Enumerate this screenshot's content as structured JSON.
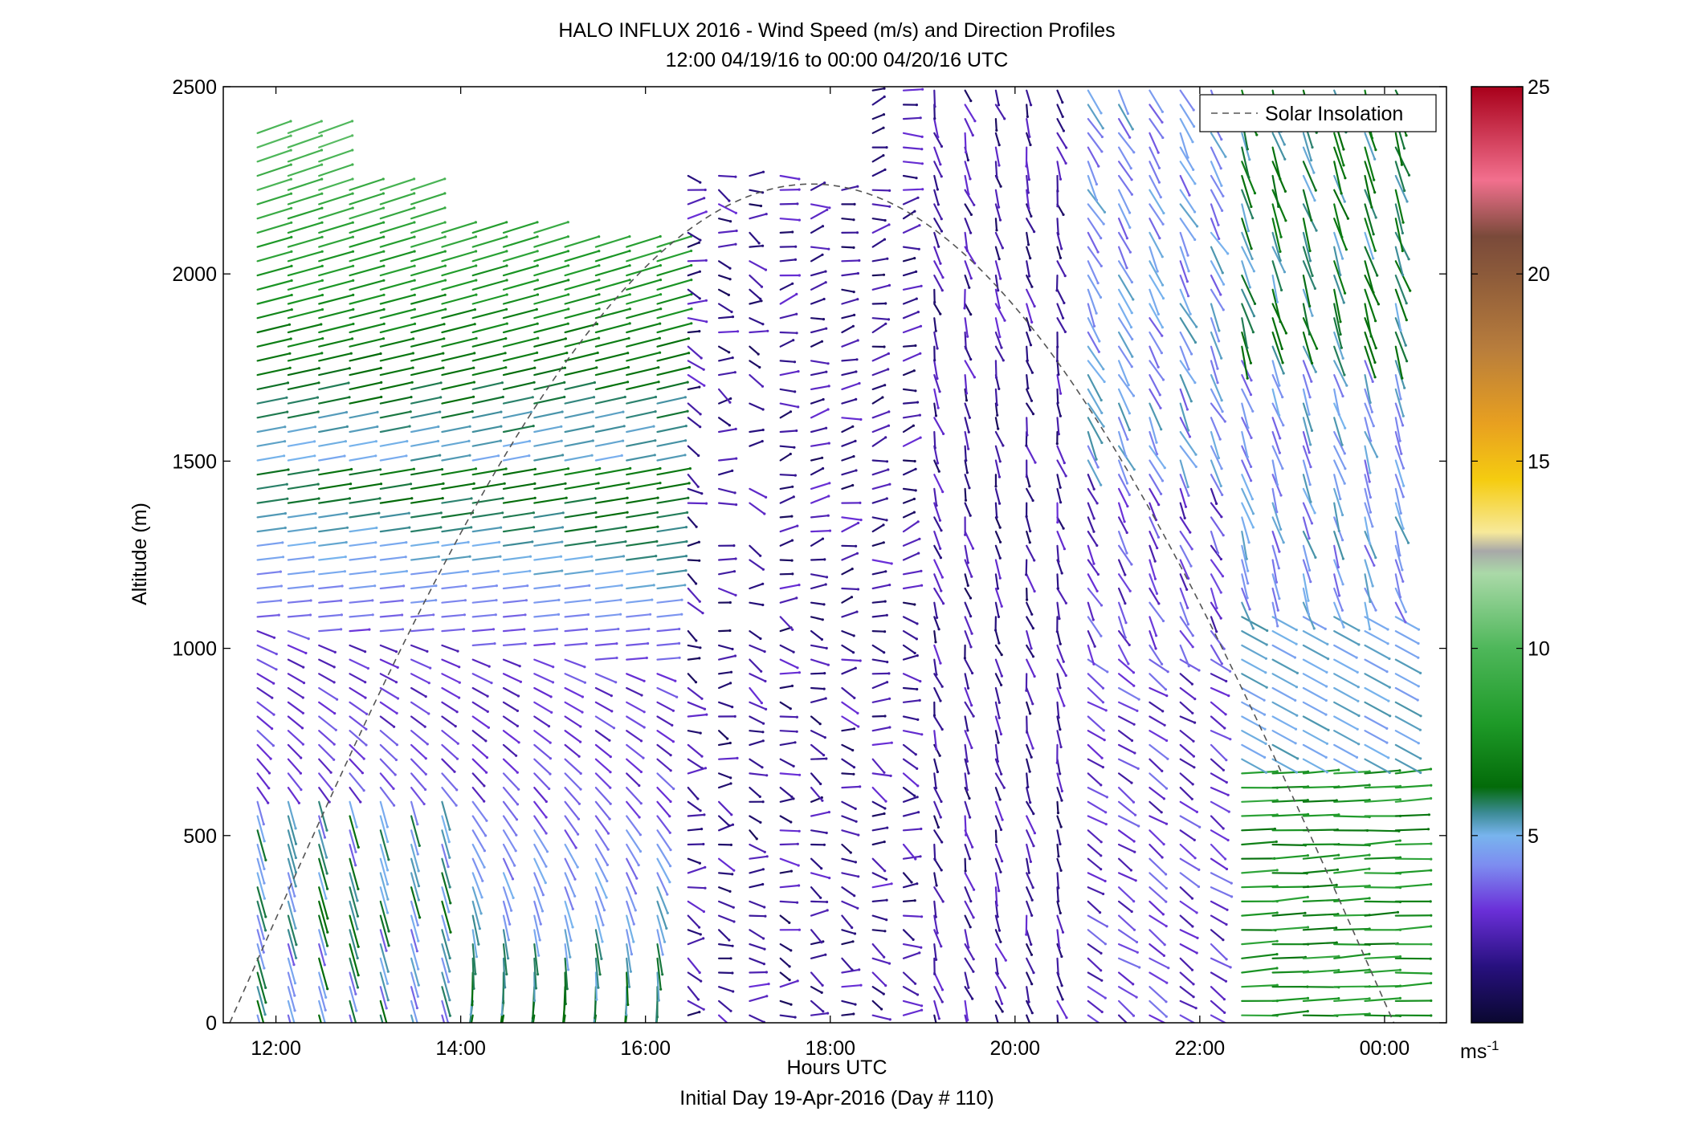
{
  "chart_data": {
    "type": "quiver",
    "title": "HALO INFLUX 2016 - Wind Speed (m/s) and Direction Profiles",
    "subtitle": "12:00 04/19/16 to 00:00 04/20/16  UTC",
    "xlabel": "Hours UTC",
    "xlabel2": "Initial Day 19-Apr-2016 (Day # 110)",
    "ylabel": "Altitude (m)",
    "xlim": [
      11.43,
      24.67
    ],
    "ylim": [
      0,
      2500
    ],
    "x_ticks": [
      12,
      14,
      16,
      18,
      20,
      22,
      24
    ],
    "x_tick_labels": [
      "12:00",
      "14:00",
      "16:00",
      "18:00",
      "20:00",
      "22:00",
      "00:00"
    ],
    "y_ticks": [
      0,
      500,
      1000,
      1500,
      2000,
      2500
    ],
    "y_tick_labels": [
      "0",
      "500",
      "1000",
      "1500",
      "2000",
      "2500"
    ],
    "legend": {
      "entries": [
        "Solar Insolation"
      ],
      "placement": "top-right",
      "line_color": "#555555"
    },
    "colorbar": {
      "label": "ms",
      "label_exponent": "-1",
      "range": [
        0,
        25
      ],
      "ticks": [
        5,
        10,
        15,
        20,
        25
      ],
      "tick_labels": [
        "5",
        "10",
        "15",
        "20",
        "25"
      ],
      "stops": [
        {
          "v": 0,
          "color": "#0a0830"
        },
        {
          "v": 1.5,
          "color": "#27107e"
        },
        {
          "v": 3,
          "color": "#6a2fd8"
        },
        {
          "v": 4.2,
          "color": "#7d8cf0"
        },
        {
          "v": 5,
          "color": "#78b4ee"
        },
        {
          "v": 5.6,
          "color": "#3c8b96"
        },
        {
          "v": 6.3,
          "color": "#036b09"
        },
        {
          "v": 8,
          "color": "#1e9a28"
        },
        {
          "v": 10,
          "color": "#4eb75a"
        },
        {
          "v": 12,
          "color": "#aad9a8"
        },
        {
          "v": 12.6,
          "color": "#a8a8a8"
        },
        {
          "v": 13.1,
          "color": "#f7e99a"
        },
        {
          "v": 14.5,
          "color": "#f5cc10"
        },
        {
          "v": 16,
          "color": "#e8a020"
        },
        {
          "v": 18,
          "color": "#b87d3c"
        },
        {
          "v": 20,
          "color": "#8c5a3a"
        },
        {
          "v": 21,
          "color": "#7a4a3a"
        },
        {
          "v": 22.5,
          "color": "#f2708e"
        },
        {
          "v": 25,
          "color": "#a8001a"
        }
      ]
    },
    "solar_insolation": {
      "peak_hour": 17.8,
      "peak_altitude": 2240,
      "start_hour": 11.5,
      "end_hour": 24.1
    },
    "wind_field": {
      "hours_start": 11.8,
      "hours_step": 0.333,
      "columns": 38,
      "altitude_step": 38,
      "altitude_max": 2490,
      "regimes": [
        {
          "from_hour": 11.7,
          "to_hour": 16.2,
          "upper": "westerly, 5-8 m/s, green/blue",
          "lower": "light, purple, turning with height"
        },
        {
          "from_hour": 16.2,
          "to_hour": 20.6,
          "description": "light and variable, 1-4 m/s, dark purple"
        },
        {
          "from_hour": 20.6,
          "to_hour": 22.4,
          "description": "northerly, 2-5 m/s"
        },
        {
          "from_hour": 22.4,
          "to_hour": 24.1,
          "lower": "westerly, 6-9 m/s, green",
          "upper": "northerly, 3-6 m/s, blue"
        }
      ]
    }
  }
}
